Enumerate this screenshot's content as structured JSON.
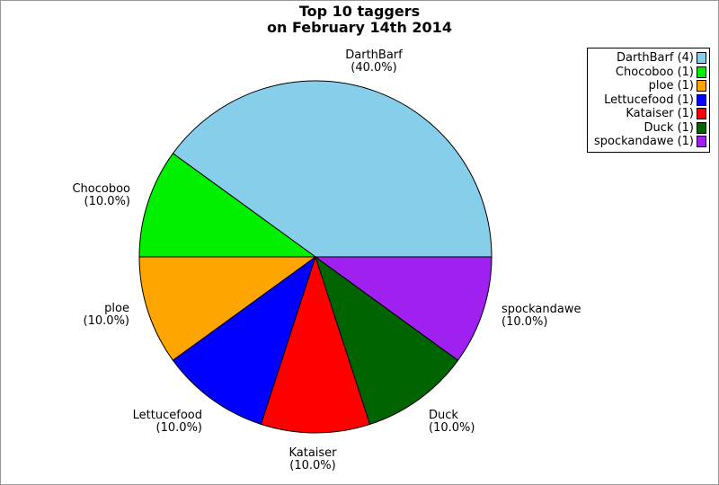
{
  "window": {
    "background": "#ffffff",
    "border_color": "#999999"
  },
  "chart_data": {
    "type": "pie",
    "title": "Top 10 taggers\non February 14th 2014",
    "title_line1": "Top 10 taggers",
    "title_line2": "on February 14th 2014",
    "start_angle_deg": 0,
    "direction": "counterclockwise",
    "outline_color": "#000000",
    "legend_position": "top-right",
    "slices": [
      {
        "name": "DarthBarf",
        "count": 4,
        "percent": 40.0,
        "pct_label": "(40.0%)",
        "legend_label": "DarthBarf (4)",
        "color": "#87CEEB"
      },
      {
        "name": "Chocoboo",
        "count": 1,
        "percent": 10.0,
        "pct_label": "(10.0%)",
        "legend_label": "Chocoboo (1)",
        "color": "#00F000"
      },
      {
        "name": "ploe",
        "count": 1,
        "percent": 10.0,
        "pct_label": "(10.0%)",
        "legend_label": "ploe (1)",
        "color": "#FFA500"
      },
      {
        "name": "Lettucefood",
        "count": 1,
        "percent": 10.0,
        "pct_label": "(10.0%)",
        "legend_label": "Lettucefood (1)",
        "color": "#0000FF"
      },
      {
        "name": "Kataiser",
        "count": 1,
        "percent": 10.0,
        "pct_label": "(10.0%)",
        "legend_label": "Kataiser (1)",
        "color": "#FF0000"
      },
      {
        "name": "Duck",
        "count": 1,
        "percent": 10.0,
        "pct_label": "(10.0%)",
        "legend_label": "Duck (1)",
        "color": "#006400"
      },
      {
        "name": "spockandawe",
        "count": 1,
        "percent": 10.0,
        "pct_label": "(10.0%)",
        "legend_label": "spockandawe (1)",
        "color": "#A020F0"
      }
    ]
  }
}
